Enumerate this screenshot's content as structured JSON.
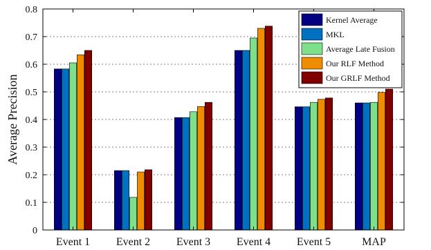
{
  "chart_data": {
    "type": "bar",
    "categories": [
      "Event 1",
      "Event 2",
      "Event 3",
      "Event 4",
      "Event 5",
      "MAP"
    ],
    "ylabel": "Average Precision",
    "xlabel": "",
    "ylim": [
      0,
      0.8
    ],
    "yticks": [
      "0",
      "0.1",
      "0.2",
      "0.3",
      "0.4",
      "0.5",
      "0.6",
      "0.7",
      "0.8"
    ],
    "grid": "horizontal dashed",
    "legend_position": "top-right",
    "series": [
      {
        "name": "Kernel Average",
        "color": "#000080",
        "values": [
          0.583,
          0.215,
          0.407,
          0.65,
          0.446,
          0.46
        ]
      },
      {
        "name": "MKL",
        "color": "#0070c0",
        "values": [
          0.583,
          0.215,
          0.407,
          0.65,
          0.446,
          0.46
        ]
      },
      {
        "name": "Average Late Fusion",
        "color": "#7ee08a",
        "values": [
          0.605,
          0.118,
          0.428,
          0.695,
          0.462,
          0.462
        ]
      },
      {
        "name": "Our RLF Method",
        "color": "#f08c00",
        "values": [
          0.634,
          0.21,
          0.447,
          0.73,
          0.473,
          0.498
        ]
      },
      {
        "name": "Our GRLF Method",
        "color": "#800000",
        "values": [
          0.65,
          0.218,
          0.462,
          0.738,
          0.478,
          0.51
        ]
      }
    ]
  }
}
